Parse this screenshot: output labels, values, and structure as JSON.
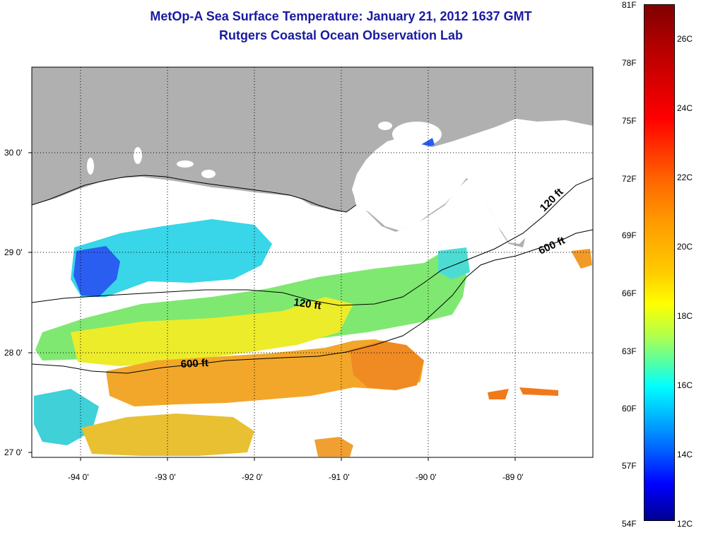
{
  "title_line1": "MetOp-A Sea Surface Temperature:  January 21, 2012 1637 GMT",
  "title_line2": "Rutgers Coastal Ocean Observation Lab",
  "map": {
    "lat_labels": [
      "30 0'",
      "29 0'",
      "28 0'",
      "27 0'"
    ],
    "lon_labels": [
      "-94 0'",
      "-93 0'",
      "-92 0'",
      "-91 0'",
      "-90 0'",
      "-89 0'"
    ],
    "contour_labels": [
      "120 ft",
      "600 ft",
      "120 ft",
      "600 ft"
    ],
    "colors": {
      "land": "#b0b0b0",
      "no_data": "#ffffff",
      "frame": "#000000"
    }
  },
  "colorbar": {
    "fahrenheit_labels": [
      "81F",
      "78F",
      "75F",
      "72F",
      "69F",
      "66F",
      "63F",
      "60F",
      "57F",
      "54F"
    ],
    "celsius_labels": [
      "26C",
      "24C",
      "22C",
      "20C",
      "18C",
      "16C",
      "14C",
      "12C"
    ],
    "range_f": [
      54,
      81
    ],
    "range_c": [
      12,
      27
    ],
    "colors_top_to_bottom": [
      "#800000",
      "#ff0000",
      "#ff9a00",
      "#ffff00",
      "#00ffff",
      "#0000ff",
      "#00008f"
    ]
  }
}
